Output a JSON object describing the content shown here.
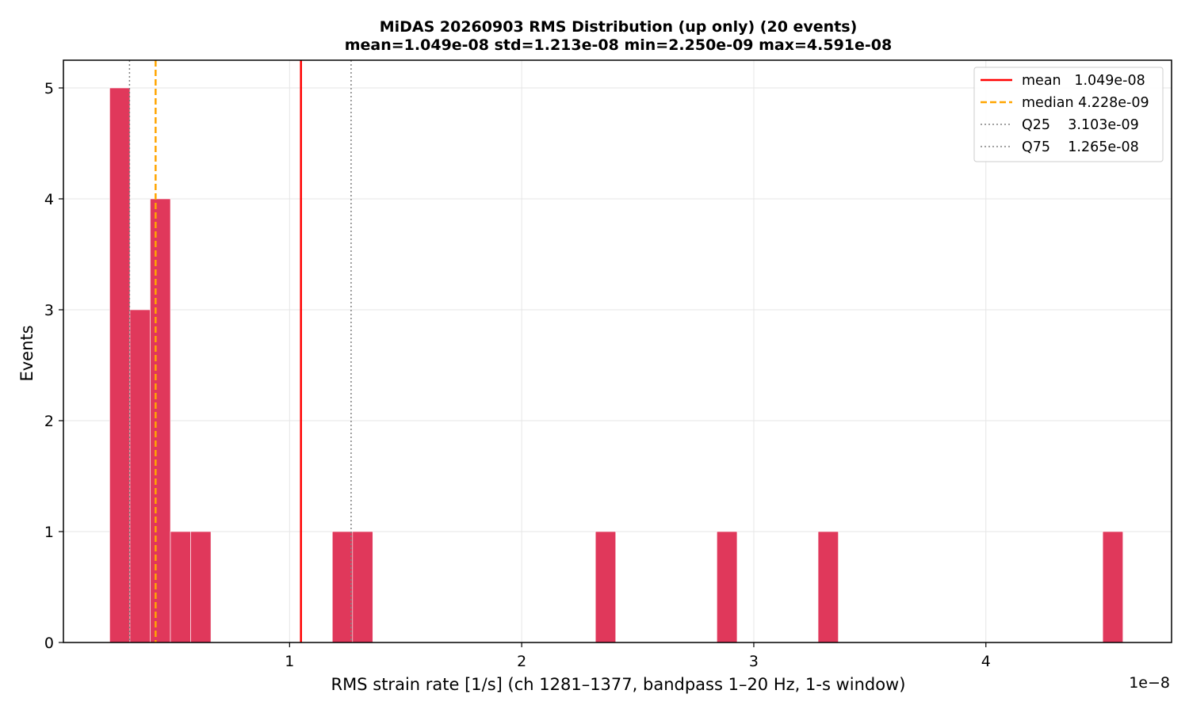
{
  "chart_data": {
    "type": "bar",
    "title_line1": "MiDAS 20260903  RMS Distribution  (up only)  (20 events)",
    "title_line2": "mean=1.049e-08  std=1.213e-08  min=2.250e-09  max=4.591e-08",
    "xlabel": "RMS strain rate [1/s]  (ch 1281–1377, bandpass 1–20 Hz, 1-s window)",
    "ylabel": "Events",
    "x_offset_label": "1e−8",
    "x_unit_scale": 1e-08,
    "xlim": [
      0.0255,
      4.8
    ],
    "ylim": [
      0,
      5.25
    ],
    "xticks": [
      1,
      2,
      3,
      4
    ],
    "xtick_labels": [
      "1",
      "2",
      "3",
      "4"
    ],
    "yticks": [
      0,
      1,
      2,
      3,
      4,
      5
    ],
    "ytick_labels": [
      "0",
      "1",
      "2",
      "3",
      "4",
      "5"
    ],
    "grid": true,
    "bar_color": "#e0385b",
    "bins": [
      {
        "x0": 0.225,
        "x1": 0.3122,
        "count": 5
      },
      {
        "x0": 0.3122,
        "x1": 0.3994,
        "count": 3
      },
      {
        "x0": 0.3994,
        "x1": 0.4866,
        "count": 4
      },
      {
        "x0": 0.4866,
        "x1": 0.5738,
        "count": 1
      },
      {
        "x0": 0.5738,
        "x1": 0.661,
        "count": 1
      },
      {
        "x0": 1.1842,
        "x1": 1.2714,
        "count": 1
      },
      {
        "x0": 1.2714,
        "x1": 1.3586,
        "count": 1
      },
      {
        "x0": 2.3178,
        "x1": 2.405,
        "count": 1
      },
      {
        "x0": 2.841,
        "x1": 2.9282,
        "count": 1
      },
      {
        "x0": 3.277,
        "x1": 3.3642,
        "count": 1
      },
      {
        "x0": 4.5034,
        "x1": 4.5906,
        "count": 1
      }
    ],
    "reference_lines": [
      {
        "name": "mean",
        "value": 1.049,
        "label": "mean   1.049e-08",
        "color": "#ff0000",
        "style": "solid"
      },
      {
        "name": "median",
        "value": 0.4228,
        "label": "median 4.228e-09",
        "color": "#ffa500",
        "style": "dashed"
      },
      {
        "name": "q25",
        "value": 0.3103,
        "label": "Q25    3.103e-09",
        "color": "#808080",
        "style": "dotted"
      },
      {
        "name": "q75",
        "value": 1.265,
        "label": "Q75    1.265e-08",
        "color": "#808080",
        "style": "dotted"
      }
    ],
    "legend_position": "top-right"
  }
}
